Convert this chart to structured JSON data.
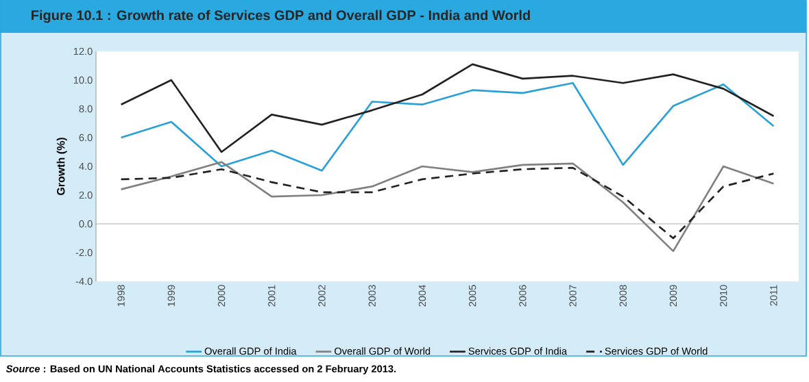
{
  "chart_data": {
    "type": "line",
    "title": "Figure 10.1 : Growth rate of Services GDP and Overall GDP - India and World",
    "ylabel": "Growth (%)",
    "categories": [
      "1998",
      "1999",
      "2000",
      "2001",
      "2002",
      "2003",
      "2004",
      "2005",
      "2006",
      "2007",
      "2008",
      "2009",
      "2010",
      "2011"
    ],
    "series": [
      {
        "name": "Overall GDP of India",
        "color": "#29a0d8",
        "line_style": "solid",
        "values": [
          6.0,
          7.1,
          4.0,
          5.1,
          3.7,
          8.5,
          8.3,
          9.3,
          9.1,
          9.8,
          4.1,
          8.2,
          9.7,
          6.8
        ]
      },
      {
        "name": "Overall GDP of World",
        "color": "#808080",
        "line_style": "solid",
        "values": [
          2.4,
          3.3,
          4.3,
          1.9,
          2.0,
          2.6,
          4.0,
          3.6,
          4.1,
          4.2,
          1.5,
          -1.9,
          4.0,
          2.8
        ]
      },
      {
        "name": "Services GDP of India",
        "color": "#222222",
        "line_style": "solid",
        "values": [
          8.3,
          10.0,
          5.0,
          7.6,
          6.9,
          7.9,
          9.0,
          11.1,
          10.1,
          10.3,
          9.8,
          10.4,
          9.4,
          7.5
        ]
      },
      {
        "name": "Services GDP of World",
        "color": "#222222",
        "line_style": "dashed",
        "values": [
          3.1,
          3.2,
          3.8,
          2.9,
          2.2,
          2.2,
          3.1,
          3.5,
          3.8,
          3.9,
          1.9,
          -1.0,
          2.6,
          3.5
        ]
      }
    ],
    "ylim": [
      -4,
      12
    ],
    "yticks": [
      {
        "value": -4,
        "label": "-4.0"
      },
      {
        "value": -2,
        "label": "-2.0"
      },
      {
        "value": 0,
        "label": "0.0"
      },
      {
        "value": 2,
        "label": "2.0"
      },
      {
        "value": 4,
        "label": "4.0"
      },
      {
        "value": 6,
        "label": "6.0"
      },
      {
        "value": 8,
        "label": "8.0"
      },
      {
        "value": 10,
        "label": "10.0"
      },
      {
        "value": 12,
        "label": "12.0"
      }
    ],
    "legend": "bottom",
    "marker": "none",
    "ref_lines": [
      {
        "axis": "y",
        "value": 0,
        "color": "#b0b0b0"
      }
    ],
    "annotations": [
      "*Source* : Based on UN National Accounts Statistics accessed on 2 February 2013."
    ]
  }
}
